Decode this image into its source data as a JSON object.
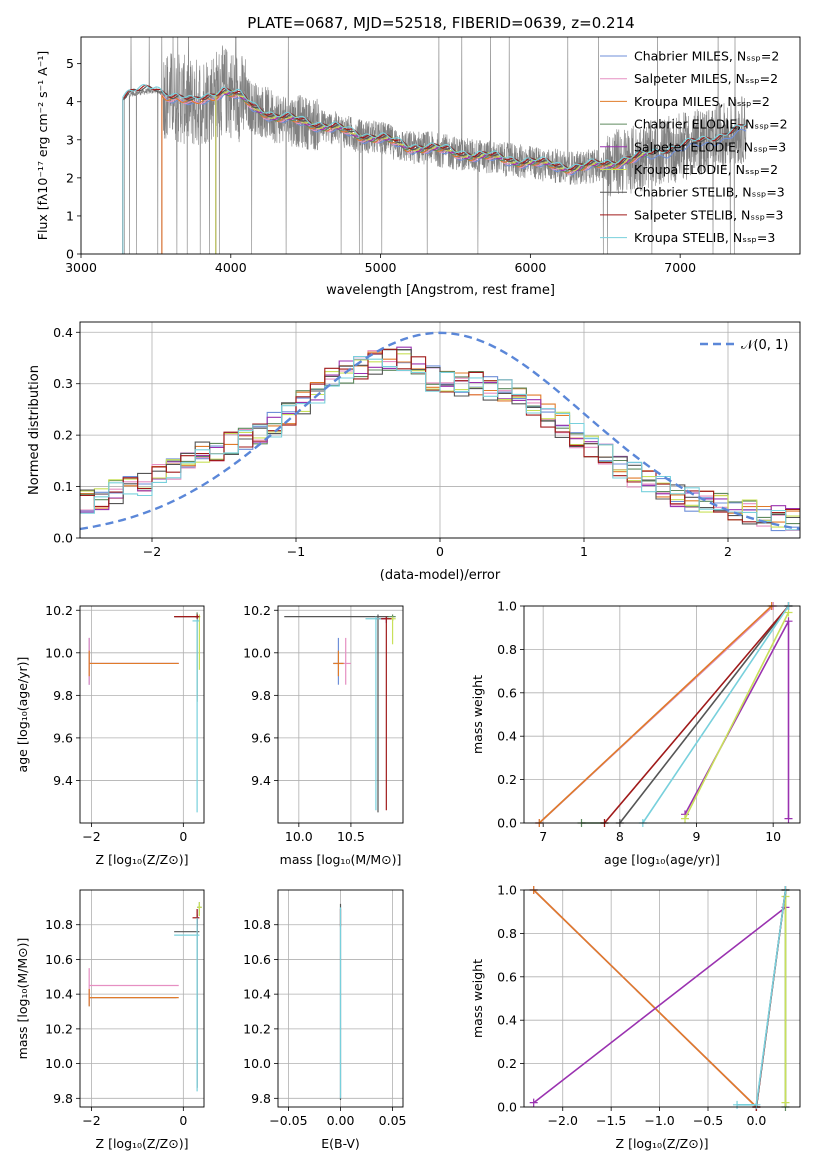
{
  "title": "PLATE=0687, MJD=52518, FIBERID=0639, z=0.214",
  "colors": {
    "Chabrier MILES": "#6f8fd8",
    "Salpeter MILES": "#e68fc2",
    "Kroupa MILES": "#e07b2a",
    "Chabrier ELODIE": "#5f8b5f",
    "Salpeter ELODIE": "#9a32b0",
    "Kroupa ELODIE": "#c9e05a",
    "Chabrier STELIB": "#555555",
    "Salpeter STELIB": "#a01a1a",
    "Kroupa STELIB": "#78d0dc",
    "data": "#808080",
    "normal": "#5b87d8",
    "grid": "#b0b0b0"
  },
  "chart_data": [
    {
      "id": "spectrum",
      "type": "line",
      "xlabel": "wavelength [Angstrom, rest frame]",
      "ylabel": "Flux [fλ10⁻¹⁷ erg cm⁻² s⁻¹ A⁻¹]",
      "xlim": [
        3000,
        7800
      ],
      "ylim": [
        0,
        5.7
      ],
      "xticks": [
        3000,
        4000,
        5000,
        6000,
        7000
      ],
      "yticks": [
        0,
        1,
        2,
        3,
        4,
        5
      ],
      "grid": false,
      "legend_position": "upper right",
      "legend": [
        "Chabrier MILES, N_SSP=2",
        "Salpeter MILES, N_SSP=2",
        "Kroupa MILES, N_SSP=2",
        "Chabrier ELODIE, N_SSP=2",
        "Salpeter ELODIE, N_SSP=3",
        "Kroupa ELODIE, N_SSP=2",
        "Chabrier STELIB, N_SSP=3",
        "Salpeter STELIB, N_SSP=3",
        "Kroupa STELIB, N_SSP=3"
      ],
      "data_x_range": [
        3280,
        7440
      ],
      "model_continuum_x": [
        3280,
        3320,
        3400,
        3500,
        3560,
        3650,
        3750,
        3850,
        3950,
        4050,
        4150,
        4300,
        4500,
        4700,
        4860,
        5000,
        5175,
        5300,
        5500,
        5700,
        5900,
        6100,
        6300,
        6500,
        6700,
        6900,
        7100,
        7300,
        7440
      ],
      "model_continuum_y": [
        4.1,
        4.2,
        4.25,
        4.3,
        4.2,
        4.1,
        3.95,
        4.1,
        4.3,
        4.15,
        3.85,
        3.6,
        3.45,
        3.3,
        3.1,
        3.05,
        2.8,
        2.8,
        2.65,
        2.55,
        2.45,
        2.35,
        2.25,
        2.35,
        2.5,
        2.7,
        2.9,
        3.1,
        3.3
      ],
      "model_ranges": {
        "Chabrier MILES": [
          3540,
          7440
        ],
        "Salpeter MILES": [
          3540,
          6760
        ],
        "Kroupa MILES": [
          3540,
          6760
        ],
        "Chabrier ELODIE": [
          3900,
          6800
        ],
        "Salpeter ELODIE": [
          3900,
          6800
        ],
        "Kroupa ELODIE": [
          3900,
          6800
        ],
        "Chabrier STELIB": [
          3280,
          7440
        ],
        "Salpeter STELIB": [
          3280,
          7440
        ],
        "Kroupa STELIB": [
          3280,
          7440
        ]
      }
    },
    {
      "id": "residuals",
      "type": "step",
      "xlabel": "(data-model)/error",
      "ylabel": "Normed distribution",
      "xlim": [
        -2.5,
        2.5
      ],
      "ylim": [
        0,
        0.42
      ],
      "xticks": [
        -2,
        -1,
        0,
        1,
        2
      ],
      "yticks": [
        0.0,
        0.1,
        0.2,
        0.3,
        0.4
      ],
      "grid": true,
      "legend_position": "upper right",
      "legend": [
        "𝒩(0, 1)"
      ],
      "bin_width": 0.1,
      "histogram_shape": {
        "x": [
          -2.5,
          -2.25,
          -2.0,
          -1.75,
          -1.5,
          -1.25,
          -1.0,
          -0.75,
          -0.5,
          -0.25,
          0.0,
          0.25,
          0.5,
          0.75,
          1.0,
          1.25,
          1.5,
          1.75,
          2.0,
          2.25,
          2.5
        ],
        "y": [
          0.065,
          0.09,
          0.11,
          0.15,
          0.18,
          0.2,
          0.25,
          0.31,
          0.34,
          0.35,
          0.3,
          0.3,
          0.28,
          0.24,
          0.19,
          0.14,
          0.1,
          0.075,
          0.06,
          0.045,
          0.03
        ]
      }
    },
    {
      "id": "age-vs-Z",
      "type": "errorbar",
      "xlabel": "Z [log10(Z/Z⊙)]",
      "ylabel": "age  [log10(age/yr)]",
      "xlim": [
        -2.25,
        0.45
      ],
      "ylim": [
        9.2,
        10.22
      ],
      "xticks": [
        -2,
        0
      ],
      "yticks": [
        9.4,
        9.6,
        9.8,
        10.0,
        10.2
      ],
      "grid": true,
      "points": [
        {
          "model": "Chabrier MILES",
          "x": -2.05,
          "xerr": [
            0,
            1.95
          ],
          "y": 9.95,
          "yerr": [
            0.1,
            0.12
          ]
        },
        {
          "model": "Salpeter MILES",
          "x": -2.05,
          "xerr": [
            0,
            1.95
          ],
          "y": 9.95,
          "yerr": [
            0.1,
            0.12
          ]
        },
        {
          "model": "Kroupa MILES",
          "x": -2.05,
          "xerr": [
            0,
            1.95
          ],
          "y": 9.95,
          "yerr": [
            0.06,
            0.06
          ]
        },
        {
          "model": "Chabrier ELODIE",
          "x": 0.3,
          "xerr": [
            0.05,
            0.05
          ],
          "y": 10.17,
          "yerr": [
            0.4,
            0.02
          ]
        },
        {
          "model": "Salpeter ELODIE",
          "x": 0.3,
          "xerr": [
            0.05,
            0.05
          ],
          "y": 10.17,
          "yerr": [
            0.02,
            0.01
          ]
        },
        {
          "model": "Kroupa ELODIE",
          "x": 0.35,
          "xerr": [
            0.05,
            0.02
          ],
          "y": 10.17,
          "yerr": [
            0.25,
            0.01
          ]
        },
        {
          "model": "Chabrier STELIB",
          "x": 0.3,
          "xerr": [
            0.5,
            0.05
          ],
          "y": 10.17,
          "yerr": [
            0.02,
            0.01
          ]
        },
        {
          "model": "Salpeter STELIB",
          "x": 0.3,
          "xerr": [
            0.5,
            0.05
          ],
          "y": 10.17,
          "yerr": [
            0.02,
            0.01
          ]
        },
        {
          "model": "Kroupa STELIB",
          "x": 0.3,
          "xerr": [
            0.1,
            0.05
          ],
          "y": 10.15,
          "yerr": [
            0.9,
            0.01
          ]
        }
      ]
    },
    {
      "id": "age-vs-mass",
      "type": "errorbar",
      "xlabel": "mass [log10(M/M⊙)]",
      "ylabel": "",
      "xlim": [
        9.8,
        11.0
      ],
      "ylim": [
        9.2,
        10.22
      ],
      "xticks": [
        10.0,
        10.5
      ],
      "yticks": [
        9.4,
        9.6,
        9.8,
        10.0,
        10.2
      ],
      "grid": true,
      "points": [
        {
          "model": "Chabrier MILES",
          "x": 10.38,
          "xerr": [
            0.05,
            0.05
          ],
          "y": 9.95,
          "yerr": [
            0.1,
            0.12
          ]
        },
        {
          "model": "Salpeter MILES",
          "x": 10.45,
          "xerr": [
            0.05,
            0.05
          ],
          "y": 9.95,
          "yerr": [
            0.1,
            0.12
          ]
        },
        {
          "model": "Kroupa MILES",
          "x": 10.38,
          "xerr": [
            0.05,
            0.05
          ],
          "y": 9.95,
          "yerr": [
            0.06,
            0.06
          ]
        },
        {
          "model": "Chabrier ELODIE",
          "x": 10.9,
          "xerr": [
            0.05,
            0.03
          ],
          "y": 10.17,
          "yerr": [
            0.02,
            0.01
          ]
        },
        {
          "model": "Salpeter ELODIE",
          "x": 10.84,
          "xerr": [
            0.05,
            0.05
          ],
          "y": 10.16,
          "yerr": [
            0.02,
            0.01
          ]
        },
        {
          "model": "Kroupa ELODIE",
          "x": 10.9,
          "xerr": [
            0.05,
            0.03
          ],
          "y": 10.16,
          "yerr": [
            0.12,
            0.01
          ]
        },
        {
          "model": "Chabrier STELIB",
          "x": 10.76,
          "xerr": [
            0.9,
            0.1
          ],
          "y": 10.17,
          "yerr": [
            0.92,
            0.01
          ]
        },
        {
          "model": "Salpeter STELIB",
          "x": 10.84,
          "xerr": [
            0.1,
            0.05
          ],
          "y": 10.16,
          "yerr": [
            0.9,
            0.01
          ]
        },
        {
          "model": "Kroupa STELIB",
          "x": 10.74,
          "xerr": [
            0.1,
            0.05
          ],
          "y": 10.16,
          "yerr": [
            0.9,
            0.01
          ]
        }
      ]
    },
    {
      "id": "weight-vs-age",
      "type": "line",
      "xlabel": "age  [log10(age/yr)]",
      "ylabel": "mass weight",
      "xlim": [
        6.75,
        10.35
      ],
      "ylim": [
        0,
        1
      ],
      "xticks": [
        7,
        8,
        9,
        10
      ],
      "yticks": [
        0.0,
        0.2,
        0.4,
        0.6,
        0.8,
        1.0
      ],
      "grid": true,
      "series": [
        {
          "name": "Chabrier MILES",
          "x": [
            6.95,
            10.0
          ],
          "y": [
            0.0,
            1.0
          ]
        },
        {
          "name": "Salpeter MILES",
          "x": [
            6.95,
            10.0
          ],
          "y": [
            0.0,
            1.0
          ]
        },
        {
          "name": "Kroupa MILES",
          "x": [
            6.95,
            9.98
          ],
          "y": [
            0.0,
            1.0
          ]
        },
        {
          "name": "Chabrier ELODIE",
          "x": [
            7.5,
            7.8
          ],
          "y": [
            0.0,
            0.0
          ]
        },
        {
          "name": "Salpeter ELODIE",
          "x": [
            8.85,
            10.2,
            10.2
          ],
          "y": [
            0.04,
            0.93,
            0.02
          ]
        },
        {
          "name": "Kroupa ELODIE",
          "x": [
            8.85,
            10.2
          ],
          "y": [
            0.02,
            0.97
          ]
        },
        {
          "name": "Chabrier STELIB",
          "x": [
            8.0,
            10.2
          ],
          "y": [
            0.0,
            1.0
          ]
        },
        {
          "name": "Salpeter STELIB",
          "x": [
            7.8,
            10.2
          ],
          "y": [
            0.0,
            1.0
          ]
        },
        {
          "name": "Kroupa STELIB",
          "x": [
            8.3,
            10.2
          ],
          "y": [
            0.0,
            1.0
          ]
        }
      ]
    },
    {
      "id": "mass-vs-Z",
      "type": "errorbar",
      "xlabel": "Z [log10(Z/Z⊙)]",
      "ylabel": "mass [log10(M/M⊙)]",
      "xlim": [
        -2.25,
        0.45
      ],
      "ylim": [
        9.75,
        11.0
      ],
      "xticks": [
        -2,
        0
      ],
      "yticks": [
        9.8,
        10.0,
        10.2,
        10.4,
        10.6,
        10.8
      ],
      "grid": true,
      "points": [
        {
          "model": "Chabrier MILES",
          "x": -2.05,
          "xerr": [
            0,
            1.9
          ],
          "y": 10.38,
          "yerr": [
            0.05,
            0.05
          ]
        },
        {
          "model": "Salpeter MILES",
          "x": -2.05,
          "xerr": [
            0,
            1.95
          ],
          "y": 10.45,
          "yerr": [
            0.1,
            0.1
          ]
        },
        {
          "model": "Kroupa MILES",
          "x": -2.05,
          "xerr": [
            0,
            1.95
          ],
          "y": 10.38,
          "yerr": [
            0.05,
            0.05
          ]
        },
        {
          "model": "Chabrier ELODIE",
          "x": 0.35,
          "xerr": [
            0.05,
            0.05
          ],
          "y": 10.9,
          "yerr": [
            0.05,
            0.03
          ]
        },
        {
          "model": "Salpeter ELODIE",
          "x": 0.3,
          "xerr": [
            0.02,
            0.02
          ],
          "y": 10.84,
          "yerr": [
            0.05,
            0.05
          ]
        },
        {
          "model": "Kroupa ELODIE",
          "x": 0.35,
          "xerr": [
            0.05,
            0.05
          ],
          "y": 10.9,
          "yerr": [
            0.05,
            0.03
          ]
        },
        {
          "model": "Chabrier STELIB",
          "x": 0.3,
          "xerr": [
            0.5,
            0.05
          ],
          "y": 10.76,
          "yerr": [
            0.9,
            0.1
          ]
        },
        {
          "model": "Salpeter STELIB",
          "x": 0.3,
          "xerr": [
            0.1,
            0.05
          ],
          "y": 10.84,
          "yerr": [
            0.1,
            0.05
          ]
        },
        {
          "model": "Kroupa STELIB",
          "x": 0.3,
          "xerr": [
            0.5,
            0.05
          ],
          "y": 10.74,
          "yerr": [
            0.9,
            0.1
          ]
        }
      ]
    },
    {
      "id": "mass-vs-EBV",
      "type": "errorbar",
      "xlabel": "E(B-V)",
      "ylabel": "",
      "xlim": [
        -0.06,
        0.06
      ],
      "ylim": [
        9.75,
        11.0
      ],
      "xticks": [
        -0.05,
        0.0,
        0.05
      ],
      "yticks": [
        9.8,
        10.0,
        10.2,
        10.4,
        10.6,
        10.8
      ],
      "grid": true,
      "points": [
        {
          "model": "Chabrier STELIB",
          "x": 0.0,
          "xerr": [
            0,
            0
          ],
          "y": 10.84,
          "yerr": [
            1.05,
            0.08
          ]
        },
        {
          "model": "Salpeter STELIB",
          "x": 0.0,
          "xerr": [
            0,
            0
          ],
          "y": 10.84,
          "yerr": [
            0.05,
            0.05
          ]
        },
        {
          "model": "Kroupa STELIB",
          "x": 0.0,
          "xerr": [
            0,
            0
          ],
          "y": 10.8,
          "yerr": [
            1.0,
            0.1
          ]
        }
      ]
    },
    {
      "id": "weight-vs-Z",
      "type": "line",
      "xlabel": "Z [log10(Z/Z⊙)]",
      "ylabel": "mass weight",
      "xlim": [
        -2.4,
        0.45
      ],
      "ylim": [
        0,
        1
      ],
      "xticks": [
        -2.0,
        -1.5,
        -1.0,
        -0.5,
        0.0
      ],
      "yticks": [
        0.0,
        0.2,
        0.4,
        0.6,
        0.8,
        1.0
      ],
      "grid": true,
      "series": [
        {
          "name": "Chabrier MILES",
          "x": [
            -2.3,
            0.0
          ],
          "y": [
            1.0,
            0.0
          ]
        },
        {
          "name": "Salpeter MILES",
          "x": [
            -2.3,
            0.0
          ],
          "y": [
            1.0,
            0.0
          ]
        },
        {
          "name": "Kroupa MILES",
          "x": [
            -2.3,
            0.0
          ],
          "y": [
            1.0,
            0.0
          ]
        },
        {
          "name": "Chabrier ELODIE",
          "x": [
            0.3,
            0.3
          ],
          "y": [
            0.0,
            1.0
          ]
        },
        {
          "name": "Salpeter ELODIE",
          "x": [
            -2.3,
            0.3
          ],
          "y": [
            0.02,
            0.92
          ]
        },
        {
          "name": "Kroupa ELODIE",
          "x": [
            0.3,
            0.3
          ],
          "y": [
            0.02,
            0.97
          ]
        },
        {
          "name": "Chabrier STELIB",
          "x": [
            0.0,
            0.3
          ],
          "y": [
            0.0,
            1.0
          ]
        },
        {
          "name": "Salpeter STELIB",
          "x": [
            0.0,
            0.3
          ],
          "y": [
            0.0,
            1.0
          ]
        },
        {
          "name": "Kroupa STELIB",
          "x": [
            -0.2,
            0.0,
            0.3
          ],
          "y": [
            0.01,
            0.01,
            1.0
          ]
        }
      ]
    }
  ]
}
